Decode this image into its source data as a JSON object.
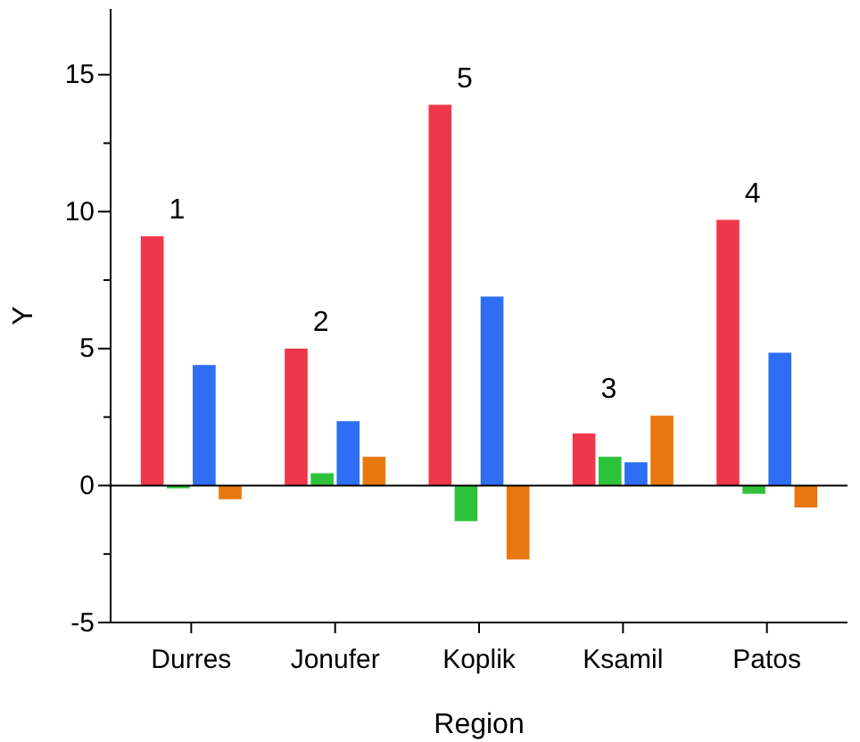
{
  "chart_data": {
    "type": "bar",
    "xlabel": "Region",
    "ylabel": "Y",
    "categories": [
      "Durres",
      "Jonufer",
      "Koplik",
      "Ksamil",
      "Patos"
    ],
    "series": [
      {
        "color": "#f0364a",
        "values": [
          9.1,
          5.0,
          13.9,
          1.9,
          9.7
        ]
      },
      {
        "color": "#2ec23a",
        "values": [
          -0.1,
          0.45,
          -1.3,
          1.05,
          -0.3
        ]
      },
      {
        "color": "#2e6ef5",
        "values": [
          4.4,
          2.35,
          6.9,
          0.85,
          4.85
        ]
      },
      {
        "color": "#e8780e",
        "values": [
          -0.5,
          1.05,
          -2.7,
          2.55,
          -0.8
        ]
      }
    ],
    "ylim": [
      -5,
      17.4
    ],
    "yticks": [
      -5,
      {
        "value": -2.5,
        "label": null
      },
      0,
      {
        "value": 2.5,
        "label": null
      },
      5,
      {
        "value": 7.5,
        "label": null
      },
      10,
      {
        "value": 12.5,
        "label": null
      },
      15
    ],
    "annotations": [
      "1",
      "2",
      "5",
      "3",
      "4"
    ],
    "ref_lines": [
      {
        "axis": "y",
        "value": 0,
        "color": "#000000"
      }
    ]
  }
}
